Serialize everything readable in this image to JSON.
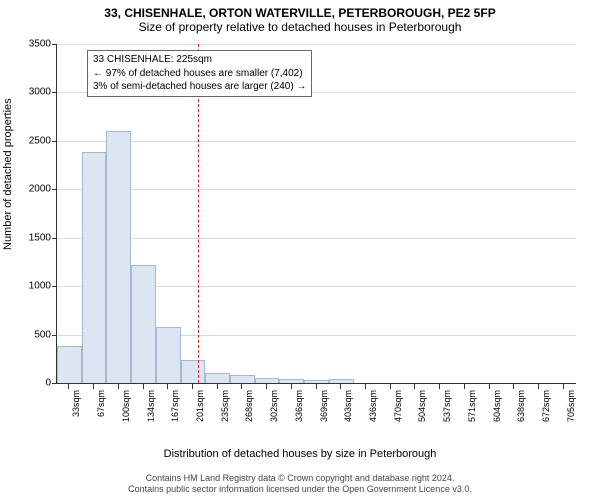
{
  "titles": {
    "line1": "33, CHISENHALE, ORTON WATERVILLE, PETERBOROUGH, PE2 5FP",
    "line2": "Size of property relative to detached houses in Peterborough"
  },
  "axes": {
    "ylabel": "Number of detached properties",
    "xlabel": "Distribution of detached houses by size in Peterborough",
    "ymin": 0,
    "ymax": 3500,
    "ytick_step": 500,
    "grid_color": "#d9d9e2",
    "axis_color": "#333333"
  },
  "histogram": {
    "bar_fill": "#dbe6f2",
    "bar_stroke": "#a8b8cc",
    "categories": [
      "33sqm",
      "67sqm",
      "100sqm",
      "134sqm",
      "167sqm",
      "201sqm",
      "235sqm",
      "268sqm",
      "302sqm",
      "336sqm",
      "369sqm",
      "403sqm",
      "436sqm",
      "470sqm",
      "504sqm",
      "537sqm",
      "571sqm",
      "604sqm",
      "638sqm",
      "672sqm",
      "705sqm"
    ],
    "values": [
      380,
      2380,
      2600,
      1220,
      575,
      240,
      100,
      80,
      50,
      45,
      30,
      45,
      0,
      0,
      0,
      0,
      0,
      0,
      0,
      0,
      0
    ]
  },
  "reference_line": {
    "color": "#d62728",
    "dash": "3,3",
    "position_category_index": 5.7
  },
  "annotation": {
    "line1": "33 CHISENHALE: 225sqm",
    "line2": "← 97% of detached houses are smaller (7,402)",
    "line3": "3% of semi-detached houses are larger (240) →"
  },
  "footer": {
    "line1": "Contains HM Land Registry data © Crown copyright and database right 2024.",
    "line2": "Contains public sector information licensed under the Open Government Licence v3.0."
  },
  "style": {
    "background_color": "#ffffff",
    "title_fontsize": 12,
    "label_fontsize": 11,
    "tick_fontsize": 10,
    "xtick_fontsize": 9,
    "footer_fontsize": 9,
    "anno_fontsize": 10
  }
}
